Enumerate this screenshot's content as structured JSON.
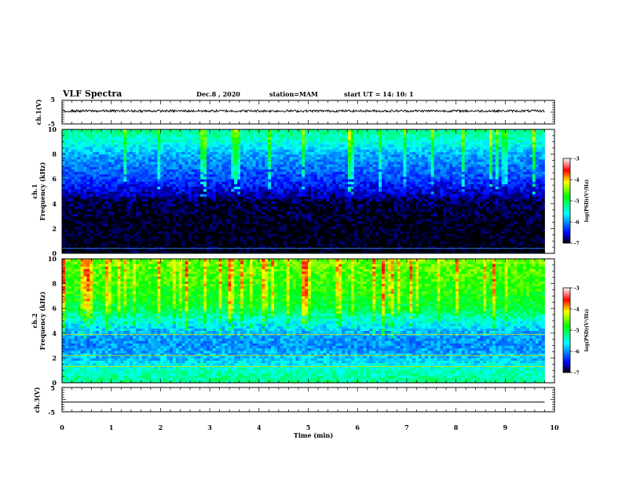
{
  "header": {
    "title": "VLF Spectra",
    "date": "Dec.8 , 2020",
    "station": "station=MAM",
    "start": "start UT = 14: 10: 1"
  },
  "colors": {
    "black": "#000000",
    "spec_colormap": [
      "#000000",
      "#0000ff",
      "#00ffff",
      "#00ff00",
      "#ffff00",
      "#ff0000",
      "#ffffff"
    ]
  },
  "chart_data": [
    {
      "name": "ch1_waveform",
      "type": "line",
      "ylabel": "ch.1(V)",
      "xlim": [
        0,
        10
      ],
      "ylim": [
        -5,
        5
      ],
      "yticks": [
        "5",
        "-5"
      ],
      "series": [
        {
          "values_x": [
            0,
            9.8
          ],
          "values_y_center": 0.5,
          "amplitude": 0.5
        }
      ]
    },
    {
      "name": "ch1_spectrogram",
      "type": "heatmap",
      "ylabel": "ch.1 Frequency (kHz)",
      "ylabel_lines": [
        "ch.1",
        "Frequency (kHz)"
      ],
      "xlim": [
        0,
        10
      ],
      "ylim": [
        0,
        10
      ],
      "data_x_end": 9.8,
      "yticks": [
        "0",
        "2",
        "4",
        "6",
        "8",
        "10"
      ],
      "colorbar": {
        "label": "log(PSD)(V²/Hz)",
        "ticks": [
          "-3",
          "-4",
          "-5",
          "-6",
          "-7"
        ],
        "range": [
          -7,
          -3
        ]
      },
      "level_profile": [
        {
          "f": 0,
          "level": -7.0
        },
        {
          "f": 2,
          "level": -7.0
        },
        {
          "f": 4,
          "level": -6.9
        },
        {
          "f": 5,
          "level": -6.6
        },
        {
          "f": 6,
          "level": -6.3
        },
        {
          "f": 7,
          "level": -6.1
        },
        {
          "f": 8,
          "level": -5.9
        },
        {
          "f": 9,
          "level": -5.5
        },
        {
          "f": 10,
          "level": -5.2
        }
      ],
      "base_line_khz": 0.4
    },
    {
      "name": "ch2_spectrogram",
      "type": "heatmap",
      "ylabel": "ch.2 Frequency (kHz)",
      "ylabel_lines": [
        "ch.2",
        "Frequency (kHz)"
      ],
      "xlim": [
        0,
        10
      ],
      "ylim": [
        0,
        10
      ],
      "data_x_end": 9.8,
      "yticks": [
        "0",
        "2",
        "4",
        "6",
        "8",
        "10"
      ],
      "colorbar": {
        "label": "log(PSD)(V²/Hz)",
        "ticks": [
          "-3",
          "-4",
          "-5",
          "-6",
          "-7"
        ],
        "range": [
          -7,
          -3
        ]
      },
      "level_profile": [
        {
          "f": 0,
          "level": -5.2
        },
        {
          "f": 1,
          "level": -5.4
        },
        {
          "f": 2,
          "level": -5.8
        },
        {
          "f": 3,
          "level": -6.0
        },
        {
          "f": 4,
          "level": -5.9
        },
        {
          "f": 5,
          "level": -5.5
        },
        {
          "f": 6,
          "level": -5.0
        },
        {
          "f": 7,
          "level": -4.8
        },
        {
          "f": 8,
          "level": -4.7
        },
        {
          "f": 9,
          "level": -4.6
        },
        {
          "f": 10,
          "level": -4.5
        }
      ],
      "lines_khz": [
        1.3,
        2.2,
        3.9
      ]
    },
    {
      "name": "ch3_waveform",
      "type": "line",
      "ylabel": "ch.3(V)",
      "xlim": [
        0,
        10
      ],
      "ylim": [
        -5,
        5
      ],
      "yticks": [
        "5",
        "0",
        "-5"
      ],
      "series": [
        {
          "values_x": [
            0,
            9.8
          ],
          "values_y": [
            -1,
            -1
          ]
        }
      ]
    }
  ],
  "xaxis": {
    "label": "Time (min)",
    "ticks": [
      "0",
      "1",
      "2",
      "3",
      "4",
      "5",
      "6",
      "7",
      "8",
      "9",
      "10"
    ],
    "range": [
      0,
      10
    ]
  }
}
